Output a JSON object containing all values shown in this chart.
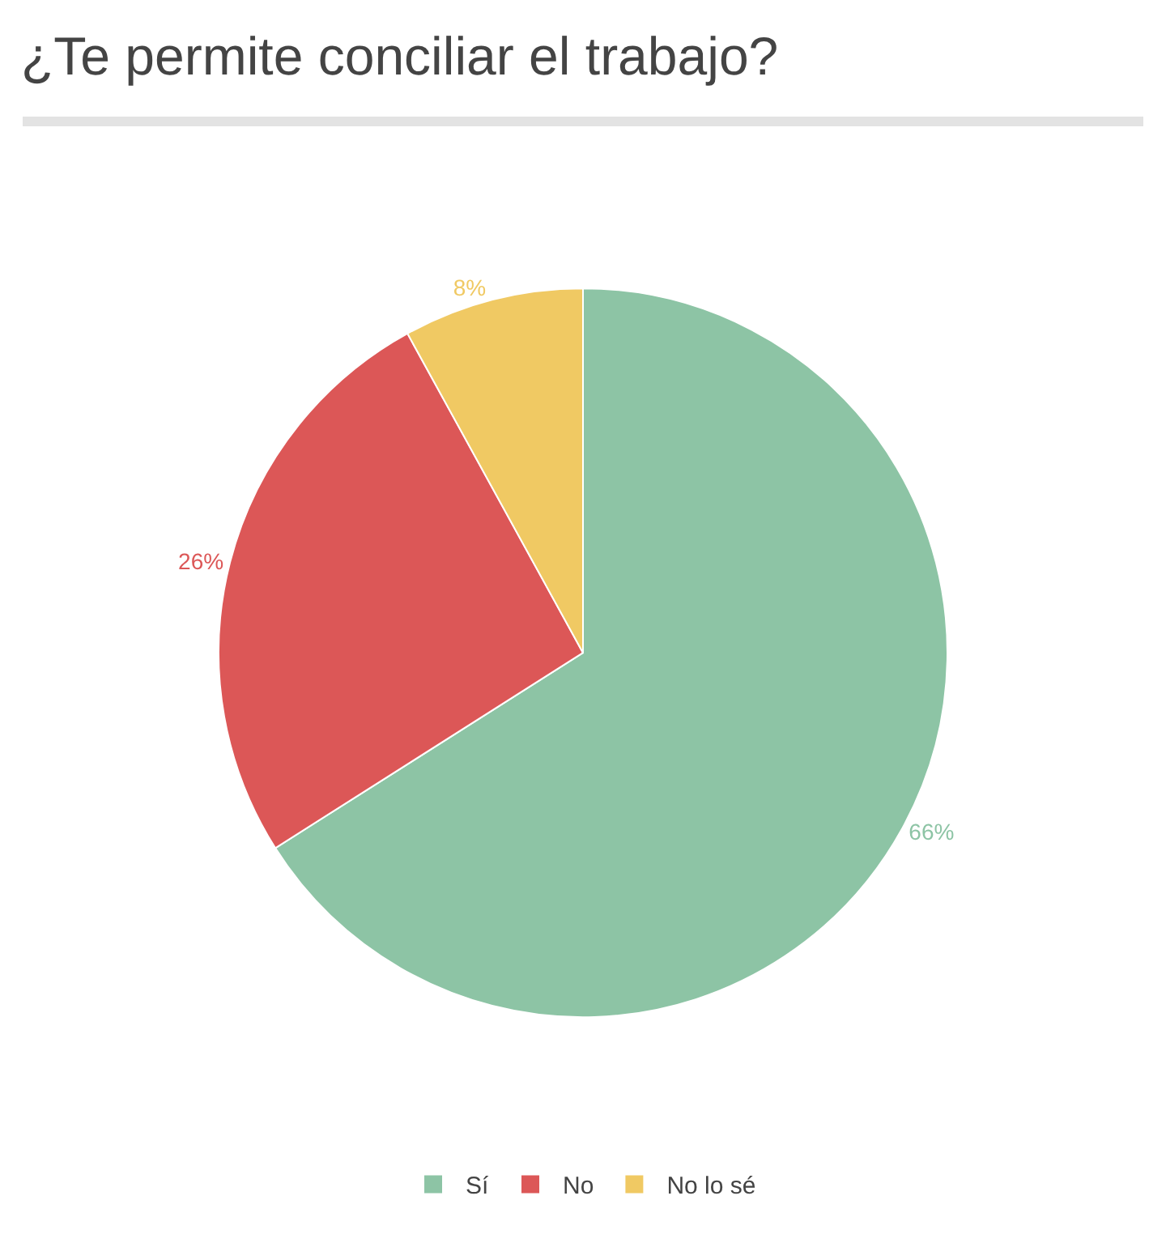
{
  "chart_data": {
    "type": "pie",
    "title": "¿Te permite conciliar el trabajo?",
    "categories": [
      "Sí",
      "No",
      "No lo sé"
    ],
    "values": [
      66,
      26,
      8
    ],
    "colors": [
      "#8dc4a5",
      "#dc5757",
      "#f0c963"
    ],
    "value_labels": [
      "66%",
      "26%",
      "8%"
    ],
    "legend": "bottom"
  }
}
